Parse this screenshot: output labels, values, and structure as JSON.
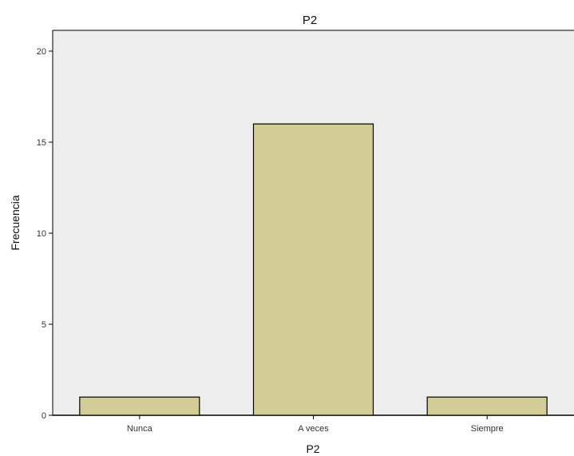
{
  "chart_data": {
    "type": "bar",
    "title": "P2",
    "xlabel": "P2",
    "ylabel": "Frecuencia",
    "categories": [
      "Nunca",
      "A veces",
      "Siempre"
    ],
    "values": [
      1,
      16,
      1
    ],
    "ylim": [
      0,
      20
    ],
    "yticks": [
      0,
      5,
      10,
      15,
      20
    ],
    "grid": false,
    "legend": "none",
    "colors": {
      "plot_background": "#ededed",
      "bar_fill": "#d2cd96",
      "bar_stroke": "#000000",
      "axis": "#000000"
    }
  }
}
